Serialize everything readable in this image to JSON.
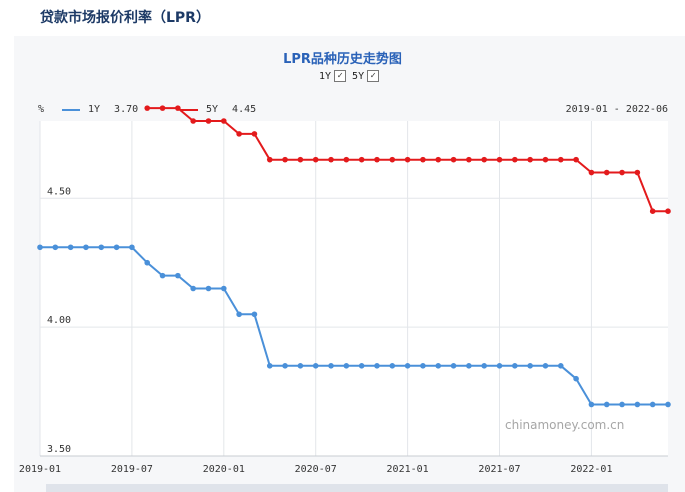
{
  "page": {
    "header_title": "贷款市场报价利率（LPR）"
  },
  "chart_title": "LPR品种历史走势图",
  "toggles": [
    {
      "label": "1Y",
      "checked": true
    },
    {
      "label": "5Y",
      "checked": true
    }
  ],
  "legend": {
    "unit": "%",
    "items": [
      {
        "name": "1Y",
        "latest": "3.70",
        "color": "#4a90d9"
      },
      {
        "name": "5Y",
        "latest": "4.45",
        "color": "#e31a1c"
      }
    ],
    "range_text": "2019-01 - 2022-06"
  },
  "watermark": "chinamoney.com.cn",
  "chart_data": {
    "type": "line",
    "title": "LPR品种历史走势图",
    "ylabel": "%",
    "ylim": [
      3.5,
      4.8
    ],
    "yticks": [
      "3.50",
      "4.00",
      "4.50"
    ],
    "xticks": [
      "2019-01",
      "2019-07",
      "2020-01",
      "2020-07",
      "2021-01",
      "2021-07",
      "2022-01"
    ],
    "x": [
      "2019-01",
      "2019-02",
      "2019-03",
      "2019-04",
      "2019-05",
      "2019-06",
      "2019-07",
      "2019-08",
      "2019-09",
      "2019-10",
      "2019-11",
      "2019-12",
      "2020-01",
      "2020-02",
      "2020-03",
      "2020-04",
      "2020-05",
      "2020-06",
      "2020-07",
      "2020-08",
      "2020-09",
      "2020-10",
      "2020-11",
      "2020-12",
      "2021-01",
      "2021-02",
      "2021-03",
      "2021-04",
      "2021-05",
      "2021-06",
      "2021-07",
      "2021-08",
      "2021-09",
      "2021-10",
      "2021-11",
      "2021-12",
      "2022-01",
      "2022-02",
      "2022-03",
      "2022-04",
      "2022-05",
      "2022-06"
    ],
    "grid": true,
    "series": [
      {
        "name": "1Y",
        "color": "#4a90d9",
        "values": [
          4.31,
          4.31,
          4.31,
          4.31,
          4.31,
          4.31,
          4.31,
          4.25,
          4.2,
          4.2,
          4.15,
          4.15,
          4.15,
          4.05,
          4.05,
          3.85,
          3.85,
          3.85,
          3.85,
          3.85,
          3.85,
          3.85,
          3.85,
          3.85,
          3.85,
          3.85,
          3.85,
          3.85,
          3.85,
          3.85,
          3.85,
          3.85,
          3.85,
          3.85,
          3.85,
          3.8,
          3.7,
          3.7,
          3.7,
          3.7,
          3.7,
          3.7
        ]
      },
      {
        "name": "5Y",
        "color": "#e31a1c",
        "values": [
          null,
          null,
          null,
          null,
          null,
          null,
          null,
          4.85,
          4.85,
          4.85,
          4.8,
          4.8,
          4.8,
          4.75,
          4.75,
          4.65,
          4.65,
          4.65,
          4.65,
          4.65,
          4.65,
          4.65,
          4.65,
          4.65,
          4.65,
          4.65,
          4.65,
          4.65,
          4.65,
          4.65,
          4.65,
          4.65,
          4.65,
          4.65,
          4.65,
          4.65,
          4.6,
          4.6,
          4.6,
          4.6,
          4.45,
          4.45
        ]
      }
    ]
  }
}
